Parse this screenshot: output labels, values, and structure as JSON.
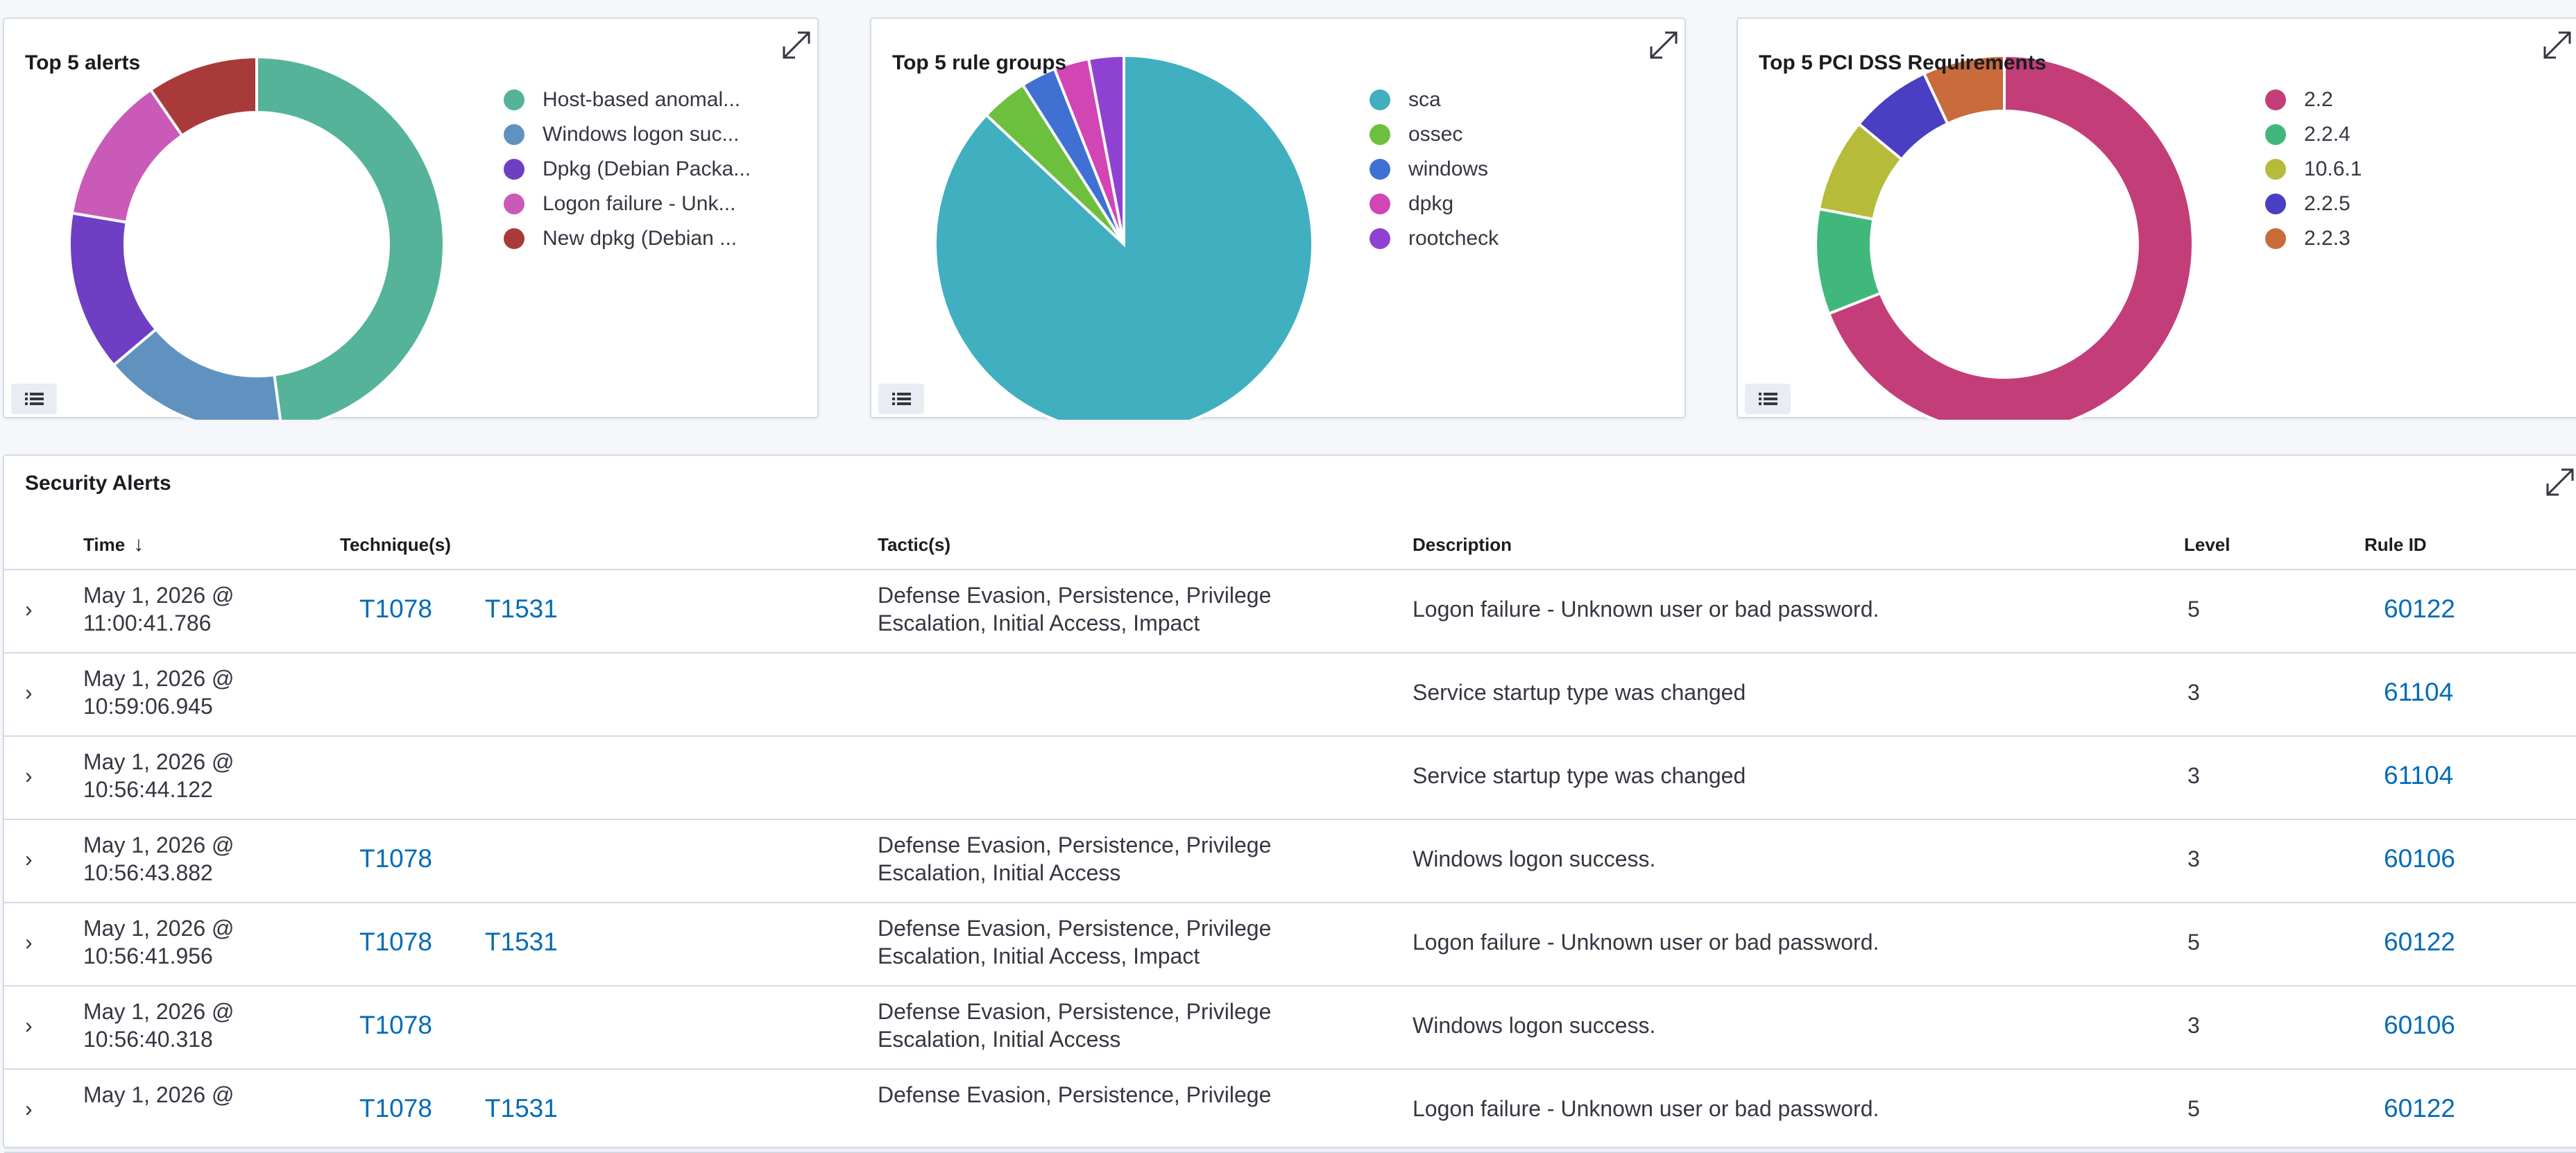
{
  "panels": {
    "alerts": {
      "title": "Top 5 alerts",
      "chart_data": {
        "type": "pie",
        "donut": true,
        "legend_position": "right",
        "categories": [
          "Host-based anomal...",
          "Windows logon suc...",
          "Dpkg (Debian Packa...",
          "Logon failure - Unk...",
          "New dpkg (Debian ..."
        ],
        "values": [
          45,
          15,
          13,
          12,
          9
        ],
        "colors": [
          "#54b399",
          "#6092c0",
          "#6e3fc2",
          "#ca5ab8",
          "#a93a3a"
        ]
      }
    },
    "rule_groups": {
      "title": "Top 5 rule groups",
      "chart_data": {
        "type": "pie",
        "donut": false,
        "legend_position": "right",
        "categories": [
          "sca",
          "ossec",
          "windows",
          "dpkg",
          "rootcheck"
        ],
        "values": [
          87,
          4,
          3,
          3,
          3
        ],
        "colors": [
          "#40afc0",
          "#6dbf3e",
          "#4170d3",
          "#d145b5",
          "#8f42d2"
        ]
      }
    },
    "pci": {
      "title": "Top 5 PCI DSS Requirements",
      "chart_data": {
        "type": "pie",
        "donut": true,
        "legend_position": "right",
        "categories": [
          "2.2",
          "2.2.4",
          "10.6.1",
          "2.2.5",
          "2.2.3"
        ],
        "values": [
          69,
          9,
          8,
          7,
          7
        ],
        "colors": [
          "#c33e78",
          "#40b87c",
          "#b6bb39",
          "#4a3ec2",
          "#c96b3a"
        ]
      }
    }
  },
  "table": {
    "title": "Security Alerts",
    "columns": {
      "time": "Time",
      "technique": "Technique(s)",
      "tactic": "Tactic(s)",
      "description": "Description",
      "level": "Level",
      "rule_id": "Rule ID"
    },
    "sort_indicator": "↓",
    "rows": [
      {
        "time1": "May 1, 2026 @",
        "time2": "11:00:41.786",
        "t1": "T1078",
        "t2": "T1531",
        "tac1": "Defense Evasion, Persistence, Privilege",
        "tac2": "Escalation, Initial Access, Impact",
        "desc": "Logon failure - Unknown user or bad password.",
        "level": "5",
        "rule": "60122"
      },
      {
        "time1": "May 1, 2026 @",
        "time2": "10:59:06.945",
        "t1": "",
        "t2": "",
        "tac1": "",
        "tac2": "",
        "desc": "Service startup type was changed",
        "level": "3",
        "rule": "61104"
      },
      {
        "time1": "May 1, 2026 @",
        "time2": "10:56:44.122",
        "t1": "",
        "t2": "",
        "tac1": "",
        "tac2": "",
        "desc": "Service startup type was changed",
        "level": "3",
        "rule": "61104"
      },
      {
        "time1": "May 1, 2026 @",
        "time2": "10:56:43.882",
        "t1": "T1078",
        "t2": "",
        "tac1": "Defense Evasion, Persistence, Privilege",
        "tac2": "Escalation, Initial Access",
        "desc": "Windows logon success.",
        "level": "3",
        "rule": "60106"
      },
      {
        "time1": "May 1, 2026 @",
        "time2": "10:56:41.956",
        "t1": "T1078",
        "t2": "T1531",
        "tac1": "Defense Evasion, Persistence, Privilege",
        "tac2": "Escalation, Initial Access, Impact",
        "desc": "Logon failure - Unknown user or bad password.",
        "level": "5",
        "rule": "60122"
      },
      {
        "time1": "May 1, 2026 @",
        "time2": "10:56:40.318",
        "t1": "T1078",
        "t2": "",
        "tac1": "Defense Evasion, Persistence, Privilege",
        "tac2": "Escalation, Initial Access",
        "desc": "Windows logon success.",
        "level": "3",
        "rule": "60106"
      },
      {
        "time1": "May 1, 2026 @",
        "time2": "",
        "t1": "T1078",
        "t2": "T1531",
        "tac1": "Defense Evasion, Persistence, Privilege",
        "tac2": "",
        "desc": "Logon failure - Unknown user or bad password.",
        "level": "5",
        "rule": "60122"
      }
    ]
  },
  "icons": {
    "expand": "expand-arrows-icon",
    "legend": "list-icon",
    "expander": "chevron-right-icon",
    "sort": "arrow-down-icon"
  },
  "expander_glyph": "›"
}
